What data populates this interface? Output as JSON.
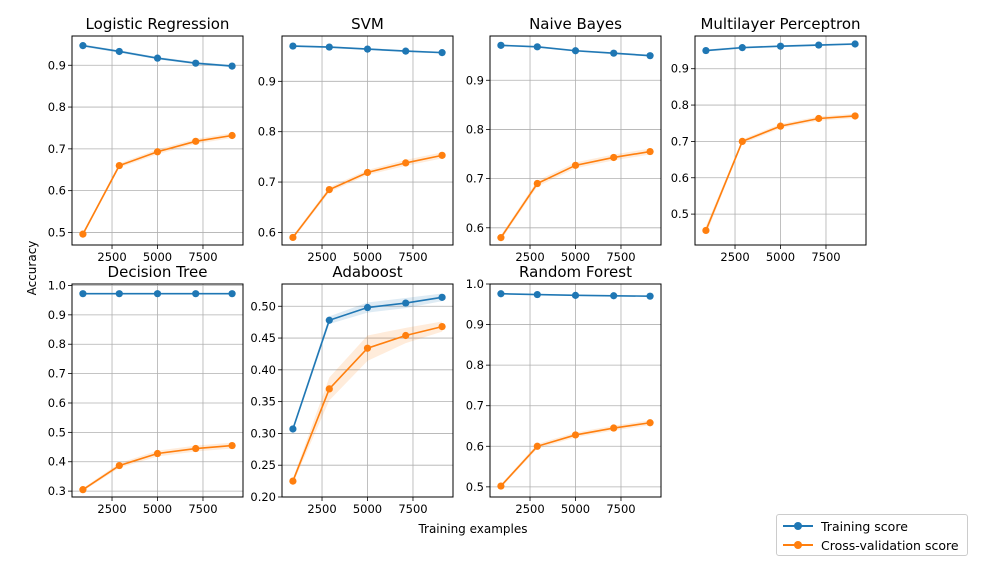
{
  "figure": {
    "ylabel": "Accuracy",
    "xlabel": "Training examples"
  },
  "colors": {
    "training": "#1f77b4",
    "cv": "#ff7f0e",
    "grid": "#b0b0b0"
  },
  "legend": {
    "placement": "bottom-right",
    "entries": [
      {
        "label": "Training score",
        "color": "#1f77b4"
      },
      {
        "label": "Cross-validation score",
        "color": "#ff7f0e"
      }
    ]
  },
  "chart_data": [
    {
      "type": "line",
      "title": "Logistic Regression",
      "x": [
        900,
        2900,
        5000,
        7100,
        9100
      ],
      "xlim": [
        300,
        9700
      ],
      "ylim": [
        0.47,
        0.97
      ],
      "xticks": [
        2500,
        5000,
        7500
      ],
      "xtick_labels": [
        "2500",
        "5000",
        "7500"
      ],
      "yticks": [
        0.5,
        0.6,
        0.7,
        0.8,
        0.9
      ],
      "ytick_labels": [
        "0.5",
        "0.6",
        "0.7",
        "0.8",
        "0.9"
      ],
      "grid": true,
      "series": [
        {
          "name": "Training score",
          "values": [
            0.947,
            0.933,
            0.917,
            0.905,
            0.898
          ],
          "band": [
            0.003,
            0.003,
            0.003,
            0.003,
            0.003
          ]
        },
        {
          "name": "Cross-validation score",
          "values": [
            0.496,
            0.66,
            0.693,
            0.718,
            0.732
          ],
          "band": [
            0.005,
            0.005,
            0.006,
            0.006,
            0.006
          ]
        }
      ]
    },
    {
      "type": "line",
      "title": "SVM",
      "x": [
        900,
        2900,
        5000,
        7100,
        9100
      ],
      "xlim": [
        300,
        9700
      ],
      "ylim": [
        0.575,
        0.99
      ],
      "xticks": [
        2500,
        5000,
        7500
      ],
      "xtick_labels": [
        "2500",
        "5000",
        "7500"
      ],
      "yticks": [
        0.6,
        0.7,
        0.8,
        0.9
      ],
      "ytick_labels": [
        "0.6",
        "0.7",
        "0.8",
        "0.9"
      ],
      "grid": true,
      "series": [
        {
          "name": "Training score",
          "values": [
            0.97,
            0.968,
            0.964,
            0.96,
            0.957
          ],
          "band": [
            0.002,
            0.002,
            0.002,
            0.002,
            0.002
          ]
        },
        {
          "name": "Cross-validation score",
          "values": [
            0.59,
            0.685,
            0.719,
            0.738,
            0.753
          ],
          "band": [
            0.004,
            0.005,
            0.005,
            0.006,
            0.006
          ]
        }
      ]
    },
    {
      "type": "line",
      "title": "Naive Bayes",
      "x": [
        900,
        2900,
        5000,
        7100,
        9100
      ],
      "xlim": [
        300,
        9700
      ],
      "ylim": [
        0.565,
        0.99
      ],
      "xticks": [
        2500,
        5000,
        7500
      ],
      "xtick_labels": [
        "2500",
        "5000",
        "7500"
      ],
      "yticks": [
        0.6,
        0.7,
        0.8,
        0.9
      ],
      "ytick_labels": [
        "0.6",
        "0.7",
        "0.8",
        "0.9"
      ],
      "grid": true,
      "series": [
        {
          "name": "Training score",
          "values": [
            0.971,
            0.968,
            0.96,
            0.955,
            0.95
          ],
          "band": [
            0.002,
            0.002,
            0.002,
            0.002,
            0.002
          ]
        },
        {
          "name": "Cross-validation score",
          "values": [
            0.58,
            0.69,
            0.727,
            0.743,
            0.755
          ],
          "band": [
            0.005,
            0.006,
            0.006,
            0.006,
            0.006
          ]
        }
      ]
    },
    {
      "type": "line",
      "title": "Multilayer Perceptron",
      "x": [
        900,
        2900,
        5000,
        7100,
        9100
      ],
      "xlim": [
        300,
        9700
      ],
      "ylim": [
        0.415,
        0.99
      ],
      "xticks": [
        2500,
        5000,
        7500
      ],
      "xtick_labels": [
        "2500",
        "5000",
        "7500"
      ],
      "yticks": [
        0.5,
        0.6,
        0.7,
        0.8,
        0.9
      ],
      "ytick_labels": [
        "0.5",
        "0.6",
        "0.7",
        "0.8",
        "0.9"
      ],
      "grid": true,
      "series": [
        {
          "name": "Training score",
          "values": [
            0.95,
            0.958,
            0.962,
            0.965,
            0.968
          ],
          "band": [
            0.003,
            0.003,
            0.003,
            0.003,
            0.003
          ]
        },
        {
          "name": "Cross-validation score",
          "values": [
            0.455,
            0.7,
            0.742,
            0.763,
            0.77
          ],
          "band": [
            0.012,
            0.006,
            0.006,
            0.006,
            0.006
          ]
        }
      ]
    },
    {
      "type": "line",
      "title": "Decision Tree",
      "x": [
        900,
        2900,
        5000,
        7100,
        9100
      ],
      "xlim": [
        300,
        9700
      ],
      "ylim": [
        0.28,
        1.005
      ],
      "xticks": [
        2500,
        5000,
        7500
      ],
      "xtick_labels": [
        "2500",
        "5000",
        "7500"
      ],
      "yticks": [
        0.3,
        0.4,
        0.5,
        0.6,
        0.7,
        0.8,
        0.9,
        1.0
      ],
      "ytick_labels": [
        "0.3",
        "0.4",
        "0.5",
        "0.6",
        "0.7",
        "0.8",
        "0.9",
        "1.0"
      ],
      "grid": true,
      "series": [
        {
          "name": "Training score",
          "values": [
            0.972,
            0.972,
            0.972,
            0.972,
            0.972
          ],
          "band": [
            0.001,
            0.001,
            0.001,
            0.001,
            0.001
          ]
        },
        {
          "name": "Cross-validation score",
          "values": [
            0.305,
            0.387,
            0.428,
            0.445,
            0.455
          ],
          "band": [
            0.005,
            0.008,
            0.01,
            0.01,
            0.01
          ]
        }
      ]
    },
    {
      "type": "line",
      "title": "Adaboost",
      "x": [
        900,
        2900,
        5000,
        7100,
        9100
      ],
      "xlim": [
        300,
        9700
      ],
      "ylim": [
        0.2,
        0.535
      ],
      "xticks": [
        2500,
        5000,
        7500
      ],
      "xtick_labels": [
        "2500",
        "5000",
        "7500"
      ],
      "yticks": [
        0.2,
        0.25,
        0.3,
        0.35,
        0.4,
        0.45,
        0.5
      ],
      "ytick_labels": [
        "0.20",
        "0.25",
        "0.30",
        "0.35",
        "0.40",
        "0.45",
        "0.50"
      ],
      "grid": true,
      "series": [
        {
          "name": "Training score",
          "values": [
            0.307,
            0.478,
            0.498,
            0.505,
            0.514
          ],
          "band": [
            0.004,
            0.006,
            0.008,
            0.008,
            0.006
          ]
        },
        {
          "name": "Cross-validation score",
          "values": [
            0.225,
            0.37,
            0.434,
            0.454,
            0.468
          ],
          "band": [
            0.004,
            0.018,
            0.02,
            0.012,
            0.008
          ]
        }
      ]
    },
    {
      "type": "line",
      "title": "Random Forest",
      "x": [
        900,
        2900,
        5000,
        7100,
        9100
      ],
      "xlim": [
        300,
        9700
      ],
      "ylim": [
        0.475,
        1.0
      ],
      "xticks": [
        2500,
        5000,
        7500
      ],
      "xtick_labels": [
        "2500",
        "5000",
        "7500"
      ],
      "yticks": [
        0.5,
        0.6,
        0.7,
        0.8,
        0.9,
        1.0
      ],
      "ytick_labels": [
        "0.5",
        "0.6",
        "0.7",
        "0.8",
        "0.9",
        "1.0"
      ],
      "grid": true,
      "series": [
        {
          "name": "Training score",
          "values": [
            0.976,
            0.974,
            0.972,
            0.971,
            0.97
          ],
          "band": [
            0.001,
            0.001,
            0.001,
            0.001,
            0.001
          ]
        },
        {
          "name": "Cross-validation score",
          "values": [
            0.502,
            0.6,
            0.628,
            0.645,
            0.658
          ],
          "band": [
            0.004,
            0.006,
            0.006,
            0.006,
            0.006
          ]
        }
      ]
    }
  ]
}
